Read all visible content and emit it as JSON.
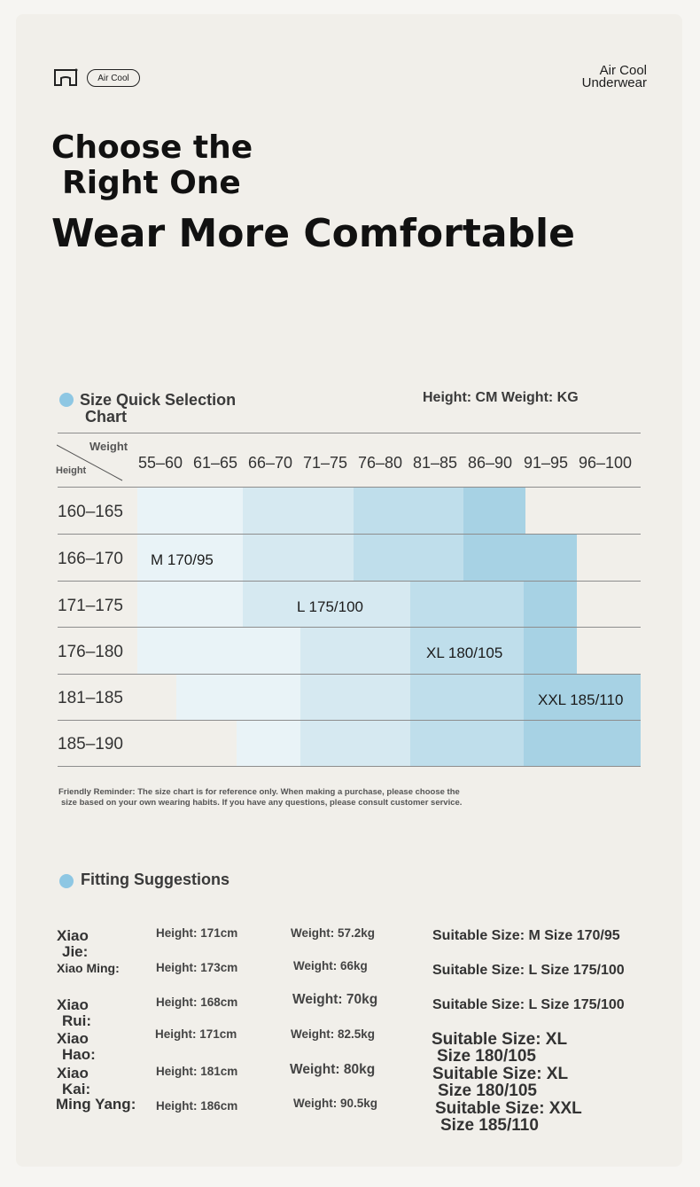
{
  "header": {
    "pill_label": "Air Cool",
    "brand_line1": "Air Cool",
    "brand_line2": "Underwear"
  },
  "headline": {
    "line1": "Choose the",
    "line2": "Right One",
    "line3": "Wear More Comfortable"
  },
  "size_chart": {
    "title_line1": "Size Quick Selection",
    "title_line2": "Chart",
    "units": "Height: CM Weight: KG",
    "corner_weight": "Weight",
    "corner_height": "Height",
    "weight_ranges": [
      "55–60",
      "61–65",
      "66–70",
      "71–75",
      "76–80",
      "81–85",
      "86–90",
      "91–95",
      "96–100"
    ],
    "height_ranges": [
      "160–165",
      "166–170",
      "171–175",
      "176–180",
      "181–185",
      "185–190"
    ],
    "sizes": {
      "m": "M 170/95",
      "l": "L 175/100",
      "xl": "XL 180/105",
      "xxl": "XXL 185/110"
    },
    "colors": {
      "m": "#e9f3f7",
      "l": "#d6e9f1",
      "xl": "#bfdeeb",
      "xxl": "#a7d2e4"
    },
    "reminder_line1": "Friendly Reminder: The size chart is for reference only. When making a purchase, please choose the",
    "reminder_line2": "size based on your own wearing habits. If you have any questions, please consult customer service."
  },
  "fitting": {
    "title": "Fitting Suggestions",
    "rows": [
      {
        "name1": "Xiao",
        "name2": "Jie:",
        "height": "Height: 171cm",
        "weight": "Weight: 57.2kg",
        "size1": "Suitable Size: M Size 170/95",
        "size2": ""
      },
      {
        "name1": "Xiao Ming:",
        "name2": "",
        "height": "Height: 173cm",
        "weight": "Weight: 66kg",
        "size1": "Suitable Size: L Size 175/100",
        "size2": ""
      },
      {
        "name1": "Xiao",
        "name2": "Rui:",
        "height": "Height: 168cm",
        "weight": "Weight: 70kg",
        "size1": "Suitable Size: L Size 175/100",
        "size2": ""
      },
      {
        "name1": "Xiao",
        "name2": "Hao:",
        "height": "Height: 171cm",
        "weight": "Weight: 82.5kg",
        "size1": "Suitable Size: XL",
        "size2": "Size 180/105"
      },
      {
        "name1": "Xiao",
        "name2": "Kai:",
        "height": "Height: 181cm",
        "weight": "Weight: 80kg",
        "size1": "Suitable Size: XL",
        "size2": "Size 180/105"
      },
      {
        "name1": "Ming Yang:",
        "name2": "",
        "height": "Height: 186cm",
        "weight": "Weight: 90.5kg",
        "size1": "Suitable Size: XXL",
        "size2": "Size 185/110"
      }
    ]
  }
}
